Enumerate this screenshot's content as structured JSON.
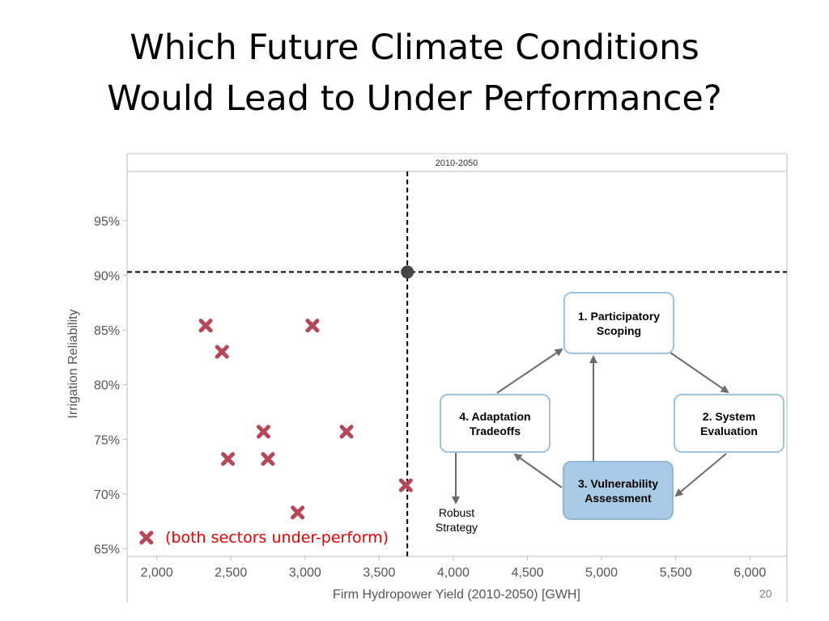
{
  "slide": {
    "title_line1": "Which Future Climate Conditions",
    "title_line2": "Would Lead to Under Performance?",
    "page_number": "20"
  },
  "annotation": "(both sectors under-perform)",
  "cycle": {
    "box1": "1. Participatory\nScoping",
    "box2": "2. System\nEvaluation",
    "box3": "3. Vulnerability\nAssessment",
    "box4": "4. Adaptation\nTradeoffs",
    "robust": "Robust\nStrategy"
  },
  "colors": {
    "marker": "#b5475b",
    "threshold_point": "#444444",
    "box_border": "#9ec3e0",
    "box_highlight": "#a9cbe6",
    "annotation": "#e00000"
  },
  "chart_data": {
    "type": "scatter",
    "panel_title": "2010-2050",
    "xlabel": "Firm Hydropower Yield (2010-2050) [GWH]",
    "ylabel": "Irrigation Reliability",
    "xlim": [
      1800,
      6250
    ],
    "ylim": [
      64.3,
      99.5
    ],
    "x_ticks": [
      2000,
      2500,
      3000,
      3500,
      4000,
      4500,
      5000,
      5500,
      6000
    ],
    "x_tick_labels": [
      "2,000",
      "2,500",
      "3,000",
      "3,500",
      "4,000",
      "4,500",
      "5,000",
      "5,500",
      "6,000"
    ],
    "y_ticks": [
      65,
      70,
      75,
      80,
      85,
      90,
      95
    ],
    "y_tick_labels": [
      "65%",
      "70%",
      "75%",
      "80%",
      "85%",
      "90%",
      "95%"
    ],
    "threshold": {
      "x": 3690,
      "y": 90.3
    },
    "points": [
      {
        "x": 1930,
        "y": 66.0
      },
      {
        "x": 2330,
        "y": 85.4
      },
      {
        "x": 2440,
        "y": 83.0
      },
      {
        "x": 2480,
        "y": 73.2
      },
      {
        "x": 2720,
        "y": 75.7
      },
      {
        "x": 2750,
        "y": 73.2
      },
      {
        "x": 2950,
        "y": 68.3
      },
      {
        "x": 3050,
        "y": 85.4
      },
      {
        "x": 3280,
        "y": 75.7
      },
      {
        "x": 3680,
        "y": 70.8
      }
    ]
  }
}
